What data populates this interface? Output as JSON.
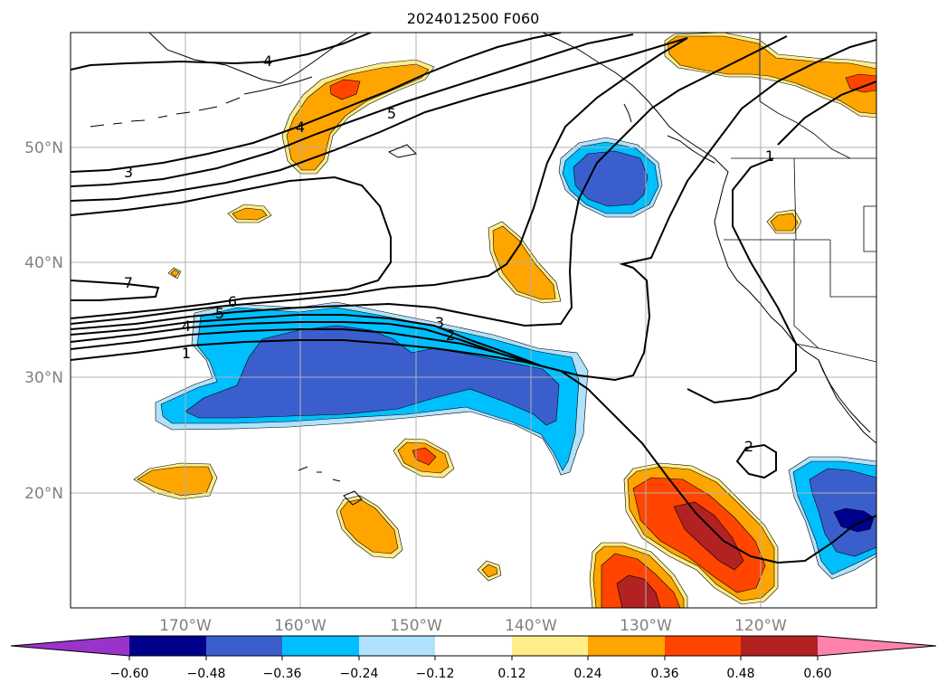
{
  "title": "2024012500 F060",
  "colors": {
    "lt_m060": "#9933cc",
    "m060_m048": "#00008b",
    "m048_m036": "#3a5fcd",
    "m036_m024": "#00bfff",
    "m024_m012": "#b0e2ff",
    "m012_012": "#ffffff",
    "p012_024": "#ffec8b",
    "p024_036": "#ffa500",
    "p036_048": "#ff4500",
    "p048_060": "#b22222",
    "gt_060": "#ff82ab"
  },
  "lat_labels": [
    "50°N",
    "40°N",
    "30°N",
    "20°N"
  ],
  "lon_labels": [
    "170°W",
    "160°W",
    "150°W",
    "140°W",
    "130°W",
    "120°W"
  ],
  "colorbar": {
    "ticks": [
      "−0.60",
      "−0.48",
      "−0.36",
      "−0.24",
      "−0.12",
      "0.12",
      "0.24",
      "0.36",
      "0.48",
      "0.60"
    ]
  },
  "contour_labels": [
    "4",
    "5",
    "3",
    "4",
    "7",
    "6",
    "5",
    "4",
    "1",
    "3",
    "2",
    "1",
    "2"
  ]
}
